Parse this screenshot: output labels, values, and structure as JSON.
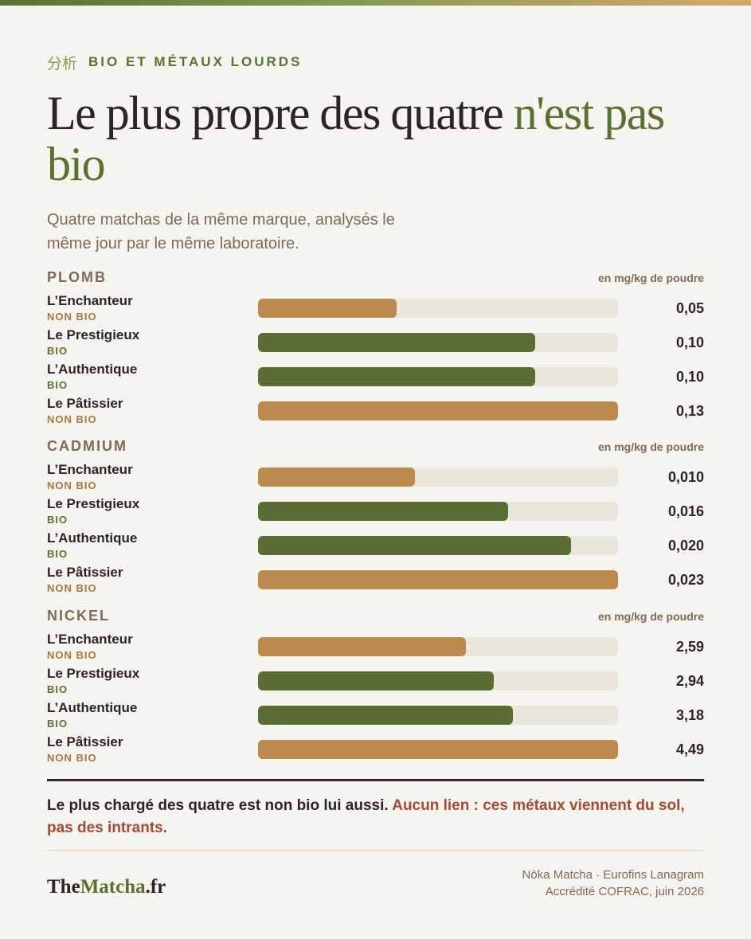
{
  "header": {
    "kanji": "分析",
    "eyebrow": "BIO ET MÉTAUX LOURDS",
    "title_main": "Le plus propre des quatre ",
    "title_highlight": "n'est pas bio",
    "subtitle": "Quatre matchas de la même marque, analysés le même jour par le même laboratoire."
  },
  "colors": {
    "bio": "#5a6e34",
    "non_bio": "#bb8a4d",
    "track": "#ebe6dc",
    "accent_green": "#5a7133",
    "accent_red": "#a44a35"
  },
  "chart_data": [
    {
      "type": "bar",
      "title": "PLOMB",
      "unit": "en mg/kg de poudre",
      "categories": [
        "L’Enchanteur",
        "Le Prestigieux",
        "L’Authentique",
        "Le Pâtissier"
      ],
      "tags": [
        "NON BIO",
        "BIO",
        "BIO",
        "NON BIO"
      ],
      "bio": [
        false,
        true,
        true,
        false
      ],
      "values": [
        0.05,
        0.1,
        0.1,
        0.13
      ],
      "labels": [
        "0,05",
        "0,10",
        "0,10",
        "0,13"
      ],
      "xlim": [
        0,
        0.13
      ]
    },
    {
      "type": "bar",
      "title": "CADMIUM",
      "unit": "en mg/kg de poudre",
      "categories": [
        "L’Enchanteur",
        "Le Prestigieux",
        "L’Authentique",
        "Le Pâtissier"
      ],
      "tags": [
        "NON BIO",
        "BIO",
        "BIO",
        "NON BIO"
      ],
      "bio": [
        false,
        true,
        true,
        false
      ],
      "values": [
        0.01,
        0.016,
        0.02,
        0.023
      ],
      "labels": [
        "0,010",
        "0,016",
        "0,020",
        "0,023"
      ],
      "xlim": [
        0,
        0.023
      ]
    },
    {
      "type": "bar",
      "title": "NICKEL",
      "unit": "en mg/kg de poudre",
      "categories": [
        "L’Enchanteur",
        "Le Prestigieux",
        "L’Authentique",
        "Le Pâtissier"
      ],
      "tags": [
        "NON BIO",
        "BIO",
        "BIO",
        "NON BIO"
      ],
      "bio": [
        false,
        true,
        true,
        false
      ],
      "values": [
        2.59,
        2.94,
        3.18,
        4.49
      ],
      "labels": [
        "2,59",
        "2,94",
        "3,18",
        "4,49"
      ],
      "xlim": [
        0,
        4.49
      ]
    }
  ],
  "footer": {
    "conclusion_main": "Le plus chargé des quatre est non bio lui aussi. ",
    "conclusion_accent": "Aucun lien : ces métaux viennent du sol, pas des intrants.",
    "logo_prefix": "The",
    "logo_green": "Matcha",
    "logo_suffix": ".fr",
    "source_line1": "Nōka Matcha · Eurofins Lanagram",
    "source_line2": "Accrédité COFRAC, juin 2026"
  }
}
